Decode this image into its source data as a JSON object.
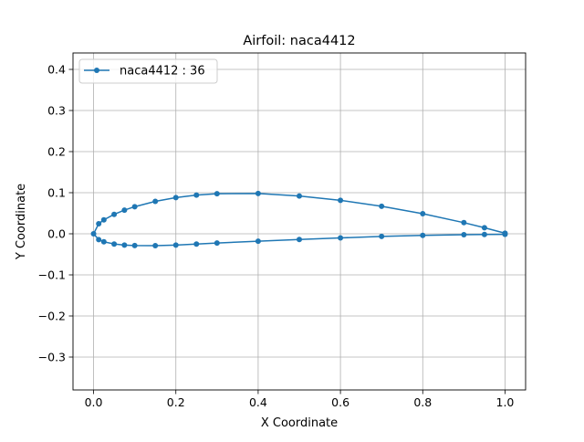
{
  "chart_data": {
    "type": "line",
    "title": "Airfoil: naca4412",
    "xlabel": "X Coordinate",
    "ylabel": "Y Coordinate",
    "xlim": [
      -0.05,
      1.05
    ],
    "ylim": [
      -0.38,
      0.44
    ],
    "x_ticks": [
      "0.0",
      "0.2",
      "0.4",
      "0.6",
      "0.8",
      "1.0"
    ],
    "y_ticks": [
      "−0.3",
      "−0.2",
      "−0.1",
      "0.0",
      "0.1",
      "0.2",
      "0.3",
      "0.4"
    ],
    "grid": true,
    "legend_position": "top-left",
    "series": [
      {
        "name": "naca4412 : 36",
        "color": "#1f77b4",
        "marker": "circle",
        "x": [
          1.0,
          0.95,
          0.9,
          0.8,
          0.7,
          0.6,
          0.5,
          0.4,
          0.3,
          0.25,
          0.2,
          0.15,
          0.1,
          0.075,
          0.05,
          0.025,
          0.0125,
          0.0,
          0.0125,
          0.025,
          0.05,
          0.075,
          0.1,
          0.15,
          0.2,
          0.25,
          0.3,
          0.4,
          0.5,
          0.6,
          0.7,
          0.8,
          0.9,
          0.95,
          1.0
        ],
        "y": [
          0.0013,
          0.0147,
          0.0271,
          0.0489,
          0.0669,
          0.0814,
          0.0919,
          0.098,
          0.0976,
          0.0941,
          0.088,
          0.0789,
          0.0659,
          0.0576,
          0.0473,
          0.0339,
          0.0244,
          0.0,
          -0.0143,
          -0.0195,
          -0.0249,
          -0.0274,
          -0.0286,
          -0.0288,
          -0.0274,
          -0.025,
          -0.0226,
          -0.018,
          -0.014,
          -0.01,
          -0.0065,
          -0.0039,
          -0.0022,
          -0.0016,
          -0.0013
        ]
      }
    ]
  }
}
